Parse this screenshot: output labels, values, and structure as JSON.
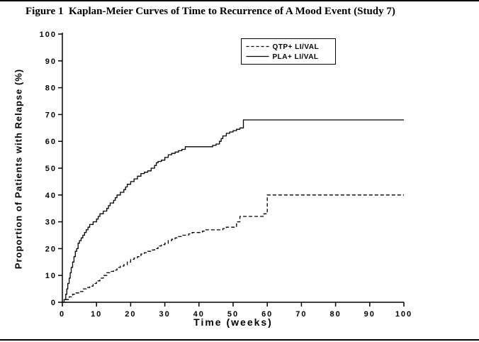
{
  "figure": {
    "title": "Figure 1  Kaplan-Meier Curves of Time to Recurrence of A Mood Event (Study 7)"
  },
  "colors": {
    "line": "#000000",
    "background": "#ffffff",
    "axis": "#000000"
  },
  "chart_data": {
    "type": "line",
    "subtype": "kaplan-meier-step",
    "title": "Figure 1  Kaplan-Meier Curves of Time to Recurrence of A Mood Event (Study 7)",
    "xlabel": "Time (weeks)",
    "ylabel": "Proportion of Patients with Relapse (%)",
    "xlim": [
      0,
      100
    ],
    "ylim": [
      0,
      100
    ],
    "xticks": [
      0,
      10,
      20,
      30,
      40,
      50,
      60,
      70,
      80,
      90,
      100
    ],
    "yticks": [
      0,
      10,
      20,
      30,
      40,
      50,
      60,
      70,
      80,
      90,
      100
    ],
    "grid": false,
    "legend_position": "top-right-inside",
    "series": [
      {
        "name": "QTP+ LI/VAL",
        "style": "dashed",
        "color": "#000000",
        "points": [
          [
            0,
            0
          ],
          [
            1,
            1
          ],
          [
            2,
            2
          ],
          [
            3,
            3
          ],
          [
            4,
            3.5
          ],
          [
            5,
            4
          ],
          [
            6,
            5
          ],
          [
            7,
            5.5
          ],
          [
            8,
            6
          ],
          [
            9,
            7
          ],
          [
            10,
            8
          ],
          [
            11,
            9
          ],
          [
            12,
            10
          ],
          [
            13,
            11
          ],
          [
            14,
            11.5
          ],
          [
            15,
            12
          ],
          [
            16,
            13
          ],
          [
            17,
            13.5
          ],
          [
            18,
            14
          ],
          [
            19,
            15
          ],
          [
            20,
            16
          ],
          [
            21,
            16.5
          ],
          [
            22,
            17
          ],
          [
            23,
            18
          ],
          [
            24,
            18.5
          ],
          [
            25,
            19
          ],
          [
            26,
            19.5
          ],
          [
            27,
            20
          ],
          [
            28,
            21
          ],
          [
            29,
            21.5
          ],
          [
            30,
            22
          ],
          [
            31,
            23
          ],
          [
            32,
            23.5
          ],
          [
            33,
            24
          ],
          [
            34,
            24.5
          ],
          [
            35,
            25
          ],
          [
            37,
            25.5
          ],
          [
            38,
            26
          ],
          [
            41,
            26.5
          ],
          [
            42,
            27
          ],
          [
            47,
            27.5
          ],
          [
            48,
            28
          ],
          [
            51,
            30
          ],
          [
            52,
            32
          ],
          [
            58,
            32
          ],
          [
            59,
            33
          ],
          [
            60,
            40
          ],
          [
            100,
            40
          ]
        ]
      },
      {
        "name": "PLA+ LI/VAL",
        "style": "solid",
        "color": "#000000",
        "points": [
          [
            0,
            0
          ],
          [
            0.5,
            1
          ],
          [
            1,
            3
          ],
          [
            1.3,
            5
          ],
          [
            1.6,
            7
          ],
          [
            2,
            9
          ],
          [
            2.3,
            11
          ],
          [
            2.6,
            13
          ],
          [
            3,
            15
          ],
          [
            3.4,
            17
          ],
          [
            3.8,
            19
          ],
          [
            4.2,
            20
          ],
          [
            4.6,
            22
          ],
          [
            5,
            23
          ],
          [
            5.5,
            24
          ],
          [
            6,
            25
          ],
          [
            6.5,
            26
          ],
          [
            7,
            27
          ],
          [
            7.5,
            28
          ],
          [
            8,
            29
          ],
          [
            9,
            30
          ],
          [
            10,
            31
          ],
          [
            10.5,
            32
          ],
          [
            11,
            33
          ],
          [
            12,
            34
          ],
          [
            13,
            35
          ],
          [
            13.5,
            36
          ],
          [
            14,
            37
          ],
          [
            15,
            38
          ],
          [
            15.5,
            39
          ],
          [
            16,
            40
          ],
          [
            17,
            41
          ],
          [
            18,
            42
          ],
          [
            18.5,
            43
          ],
          [
            19,
            44
          ],
          [
            20,
            45
          ],
          [
            21,
            46
          ],
          [
            22,
            47
          ],
          [
            23,
            48
          ],
          [
            24,
            48.5
          ],
          [
            25,
            49
          ],
          [
            26,
            50
          ],
          [
            27,
            51
          ],
          [
            27.5,
            52
          ],
          [
            28,
            52.5
          ],
          [
            29,
            53
          ],
          [
            30,
            54
          ],
          [
            31,
            55
          ],
          [
            32,
            55.5
          ],
          [
            33,
            56
          ],
          [
            34,
            56.5
          ],
          [
            35,
            57
          ],
          [
            36,
            58
          ],
          [
            43,
            58
          ],
          [
            44,
            58.5
          ],
          [
            45,
            59
          ],
          [
            46,
            60
          ],
          [
            46.5,
            61
          ],
          [
            47,
            62
          ],
          [
            48,
            63
          ],
          [
            49,
            63.5
          ],
          [
            50,
            64
          ],
          [
            51,
            64.5
          ],
          [
            52,
            65
          ],
          [
            53,
            68
          ],
          [
            100,
            68
          ]
        ]
      }
    ]
  }
}
